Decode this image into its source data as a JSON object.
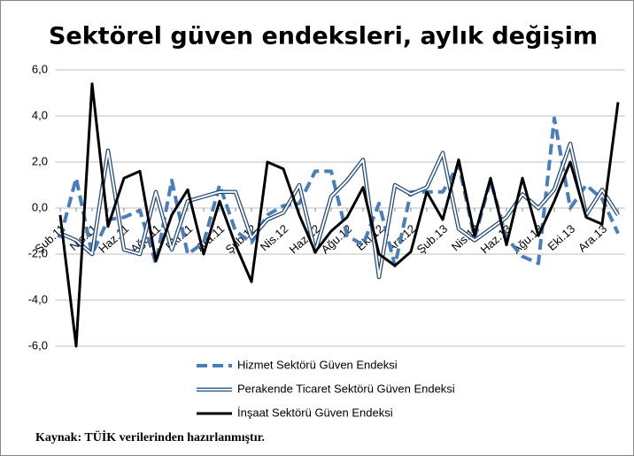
{
  "chart_data": {
    "type": "line",
    "title": "Sektörel güven endeksleri, aylık değişim",
    "source": "Kaynak: TÜİK verilerinden  hazırlanmıştır.",
    "categories": [
      "Şub.11",
      null,
      "Nis.11",
      null,
      "Haz.11",
      null,
      "Ağu.11",
      null,
      "Eki.11",
      null,
      "Ara.11",
      null,
      "Şub.12",
      null,
      "Nis.12",
      null,
      "Haz.12",
      null,
      "Ağu.12",
      null,
      "Eki.12",
      null,
      "Ara.12",
      null,
      "Şub.13",
      null,
      "Nis.13",
      null,
      "Haz.13",
      null,
      "Ağu.13",
      null,
      "Eki.13",
      null,
      "Ara.13",
      null
    ],
    "series": [
      {
        "name": "Hizmet Sektörü Güven Endeksi",
        "color": "#4a7ebb",
        "style": "dashed",
        "values": [
          -1.3,
          1.3,
          -2.0,
          -0.5,
          -0.4,
          -0.1,
          -2.4,
          1.2,
          -2.0,
          -1.5,
          1.0,
          -1.0,
          -1.5,
          -0.3,
          0.1,
          0.2,
          1.6,
          1.6,
          -1.2,
          -1.6,
          0.2,
          -2.5,
          0.7,
          0.7,
          0.7,
          1.9,
          -1.3,
          1.2,
          -1.3,
          -2.1,
          -2.4,
          3.9,
          0.0,
          1.0,
          0.4,
          -1.1
        ]
      },
      {
        "name": "Perakende Ticaret Sektörü Güven Endeksi",
        "color": "#1f497d",
        "style": "double",
        "values": [
          -1.1,
          -1.4,
          -2.0,
          2.5,
          -1.8,
          -2.0,
          0.7,
          -1.8,
          0.3,
          0.5,
          0.7,
          0.7,
          -1.3,
          -0.5,
          -0.2,
          1.0,
          -1.9,
          0.5,
          1.2,
          2.1,
          -3.0,
          1.0,
          0.6,
          0.9,
          2.4,
          -0.9,
          -1.4,
          -0.9,
          -0.4,
          0.6,
          0.0,
          0.8,
          2.8,
          -0.3,
          0.8,
          -0.3
        ]
      },
      {
        "name": "İnşaat Sektörü Güven Endeksi",
        "color": "#000000",
        "style": "solid",
        "values": [
          -0.3,
          -6.0,
          5.4,
          -0.8,
          1.3,
          1.6,
          -2.3,
          -0.3,
          0.8,
          -2.0,
          0.3,
          -1.6,
          -3.2,
          2.0,
          1.7,
          -0.3,
          -1.9,
          -1.0,
          -0.4,
          0.9,
          -2.0,
          -2.5,
          -1.9,
          0.7,
          -0.5,
          2.1,
          -1.2,
          1.3,
          -1.6,
          1.3,
          -1.2,
          0.3,
          2.0,
          -0.4,
          -0.7,
          4.6
        ]
      }
    ],
    "ylim": [
      -6,
      6
    ],
    "yticks": [
      {
        "value": -6,
        "label": "-6,0"
      },
      {
        "value": -4,
        "label": "-4,0"
      },
      {
        "value": -2,
        "label": "-2,0"
      },
      {
        "value": 0,
        "label": "0,0"
      },
      {
        "value": 2,
        "label": "2,0"
      },
      {
        "value": 4,
        "label": "4,0"
      },
      {
        "value": 6,
        "label": "6,0"
      }
    ],
    "grid": true
  }
}
